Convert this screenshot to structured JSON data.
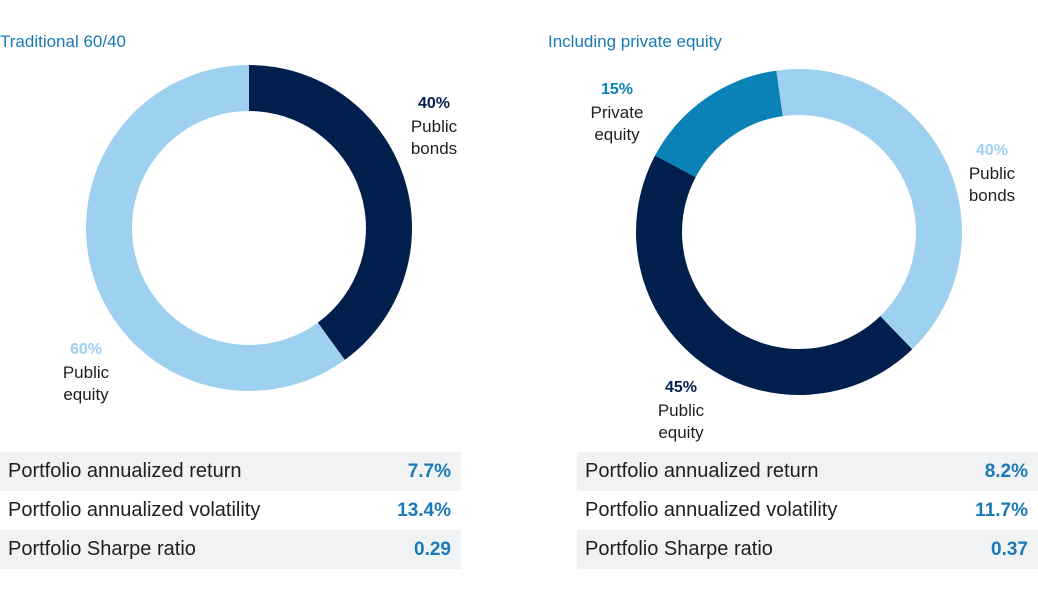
{
  "colors": {
    "dark_navy": "#001f4d",
    "light_blue": "#9ed0f0",
    "mid_blue": "#0a82b8",
    "accent_text": "#1a7ab8"
  },
  "chart_data": [
    {
      "type": "pie",
      "variant": "donut",
      "title": "Traditional 60/40",
      "slices": [
        {
          "name": "Public bonds",
          "value": 40,
          "label_pct": "40%",
          "label_lines": [
            "Public",
            "bonds"
          ],
          "color": "#001f4d",
          "pct_color": "#001f4d"
        },
        {
          "name": "Public equity",
          "value": 60,
          "label_pct": "60%",
          "label_lines": [
            "Public",
            "equity"
          ],
          "color": "#9ed0f0",
          "pct_color": "#9ed0f0"
        }
      ],
      "stats": [
        {
          "name": "Portfolio annualized return",
          "value": "7.7%"
        },
        {
          "name": "Portfolio annualized volatility",
          "value": "13.4%"
        },
        {
          "name": "Portfolio Sharpe ratio",
          "value": "0.29"
        }
      ]
    },
    {
      "type": "pie",
      "variant": "donut",
      "title": "Including private equity",
      "slices": [
        {
          "name": "Public bonds",
          "value": 40,
          "label_pct": "40%",
          "label_lines": [
            "Public",
            "bonds"
          ],
          "color": "#9ed0f0",
          "pct_color": "#9ed0f0"
        },
        {
          "name": "Public equity",
          "value": 45,
          "label_pct": "45%",
          "label_lines": [
            "Public",
            "equity"
          ],
          "color": "#001f4d",
          "pct_color": "#001f4d"
        },
        {
          "name": "Private equity",
          "value": 15,
          "label_pct": "15%",
          "label_lines": [
            "Private",
            "equity"
          ],
          "color": "#0a82b8",
          "pct_color": "#0a82b8"
        }
      ],
      "stats": [
        {
          "name": "Portfolio annualized return",
          "value": "8.2%"
        },
        {
          "name": "Portfolio annualized volatility",
          "value": "11.7%"
        },
        {
          "name": "Portfolio Sharpe ratio",
          "value": "0.37"
        }
      ]
    }
  ]
}
